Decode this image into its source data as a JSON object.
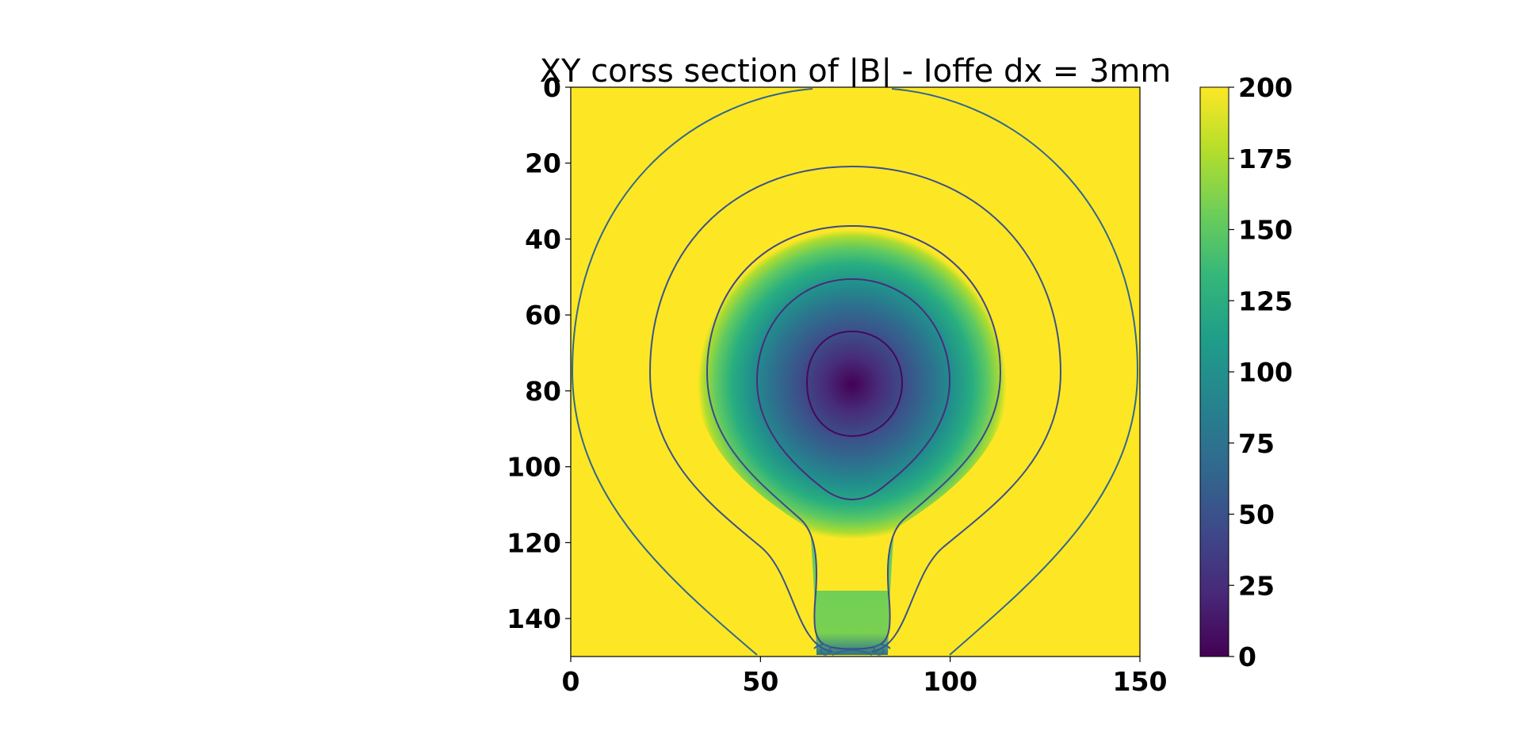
{
  "chart_data": {
    "type": "heatmap",
    "title": "XY corss section of |B| - Ioffe dx = 3mm",
    "xlabel": "",
    "ylabel": "",
    "xlim": [
      0,
      150
    ],
    "ylim": [
      150,
      0
    ],
    "x_ticks": [
      "0",
      "50",
      "100",
      "150"
    ],
    "y_ticks": [
      "0",
      "20",
      "40",
      "60",
      "80",
      "100",
      "120",
      "140"
    ],
    "colorbar": {
      "colormap": "viridis",
      "range": [
        0,
        200
      ],
      "ticks": [
        "0",
        "25",
        "50",
        "75",
        "100",
        "125",
        "150",
        "175",
        "200"
      ]
    },
    "field_minimum": {
      "x": 75,
      "y": 78
    },
    "contour_levels": [
      30,
      80,
      130,
      180,
      220
    ],
    "grid": false
  },
  "colors": {
    "viridis": [
      "#440154",
      "#482878",
      "#3e4989",
      "#31688e",
      "#26828e",
      "#1f9e89",
      "#35b779",
      "#6ece58",
      "#b5de2b",
      "#fde725"
    ]
  }
}
